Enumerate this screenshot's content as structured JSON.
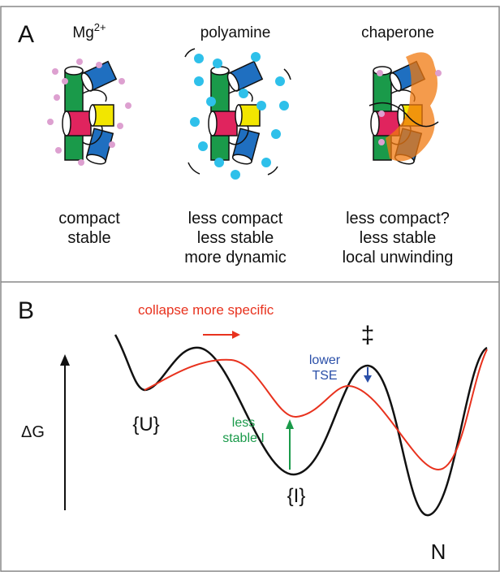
{
  "panel_a": {
    "label": "A",
    "columns": [
      {
        "title_base": "Mg",
        "title_sup": "2+",
        "lines": [
          "compact",
          "stable"
        ]
      },
      {
        "title": "polyamine",
        "lines": [
          "less compact",
          "less stable",
          "more dynamic"
        ]
      },
      {
        "title": "chaperone",
        "lines": [
          "less compact?",
          "less stable",
          "local unwinding"
        ]
      }
    ]
  },
  "panel_b": {
    "label": "B",
    "red_note": "collapse more specific",
    "ts_symbol": "‡",
    "blue_note": [
      "lower",
      "TSE"
    ],
    "axis_label": "ΔG",
    "u_label": "{U}",
    "green_note": [
      "less",
      "stable I"
    ],
    "i_label": "{I}",
    "n_label": "N"
  }
}
